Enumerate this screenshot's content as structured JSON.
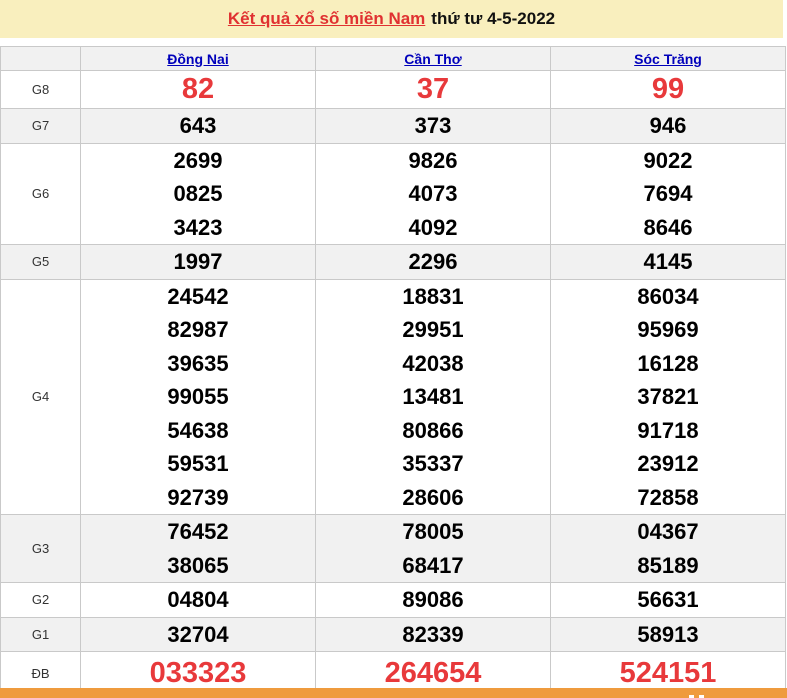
{
  "header": {
    "title_link": "Kết quả xổ số miền Nam",
    "title_suffix": "thứ tư 4-5-2022"
  },
  "columns": [
    "Đồng Nai",
    "Cần Thơ",
    "Sóc Trăng"
  ],
  "rows": [
    {
      "label": "G8",
      "highlight": true,
      "values": [
        [
          "82"
        ],
        [
          "37"
        ],
        [
          "99"
        ]
      ]
    },
    {
      "label": "G7",
      "highlight": false,
      "values": [
        [
          "643"
        ],
        [
          "373"
        ],
        [
          "946"
        ]
      ]
    },
    {
      "label": "G6",
      "highlight": false,
      "values": [
        [
          "2699",
          "0825",
          "3423"
        ],
        [
          "9826",
          "4073",
          "4092"
        ],
        [
          "9022",
          "7694",
          "8646"
        ]
      ]
    },
    {
      "label": "G5",
      "highlight": false,
      "values": [
        [
          "1997"
        ],
        [
          "2296"
        ],
        [
          "4145"
        ]
      ]
    },
    {
      "label": "G4",
      "highlight": false,
      "values": [
        [
          "24542",
          "82987",
          "39635",
          "99055",
          "54638",
          "59531",
          "92739"
        ],
        [
          "18831",
          "29951",
          "42038",
          "13481",
          "80866",
          "35337",
          "28606"
        ],
        [
          "86034",
          "95969",
          "16128",
          "37821",
          "91718",
          "23912",
          "72858"
        ]
      ]
    },
    {
      "label": "G3",
      "highlight": false,
      "values": [
        [
          "76452",
          "38065"
        ],
        [
          "78005",
          "68417"
        ],
        [
          "04367",
          "85189"
        ]
      ]
    },
    {
      "label": "G2",
      "highlight": false,
      "values": [
        [
          "04804"
        ],
        [
          "89086"
        ],
        [
          "56631"
        ]
      ]
    },
    {
      "label": "G1",
      "highlight": false,
      "values": [
        [
          "32704"
        ],
        [
          "82339"
        ],
        [
          "58913"
        ]
      ]
    },
    {
      "label": "ĐB",
      "highlight": true,
      "values": [
        [
          "033323"
        ],
        [
          "264654"
        ],
        [
          "524151"
        ]
      ]
    }
  ],
  "colors": {
    "band_bg": "#f9efbe",
    "row_shade": "#f1f1f1",
    "border": "#c9c9c9",
    "title_link_red": "#e03131",
    "province_link_blue": "#0000bb",
    "highlight_number_red": "#e8393b",
    "bottom_bar_orange": "#ef9b3e"
  }
}
